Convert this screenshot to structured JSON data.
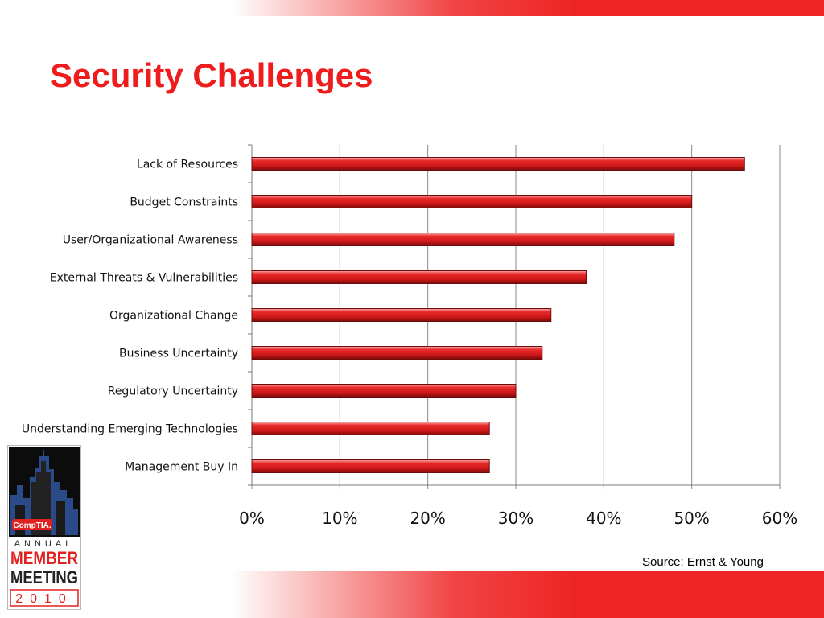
{
  "slide": {
    "title": "Security Challenges",
    "source": "Source: Ernst & Young"
  },
  "logo": {
    "brand": "CompTIA.",
    "line1": "ANNUAL",
    "line2": "MEMBER",
    "line3": "MEETING",
    "year": "2010"
  },
  "colors": {
    "accent": "#ee1c1c",
    "bar": "#d51f1f",
    "bar_dark": "#8e1010",
    "band": "#ee2424"
  },
  "chart_data": {
    "type": "bar",
    "orientation": "horizontal",
    "title": "",
    "xlabel": "",
    "ylabel": "",
    "categories": [
      "Lack of Resources",
      "Budget Constraints",
      "User/Organizational Awareness",
      "External Threats & Vulnerabilities",
      "Organizational Change",
      "Business Uncertainty",
      "Regulatory Uncertainty",
      "Understanding Emerging Technologies",
      "Management Buy In"
    ],
    "values": [
      56,
      50,
      48,
      38,
      34,
      33,
      30,
      27,
      27
    ],
    "unit": "%",
    "xlim": [
      0,
      60
    ],
    "tick_labels": [
      "0%",
      "10%",
      "20%",
      "30%",
      "40%",
      "50%",
      "60%"
    ],
    "grid": true
  }
}
